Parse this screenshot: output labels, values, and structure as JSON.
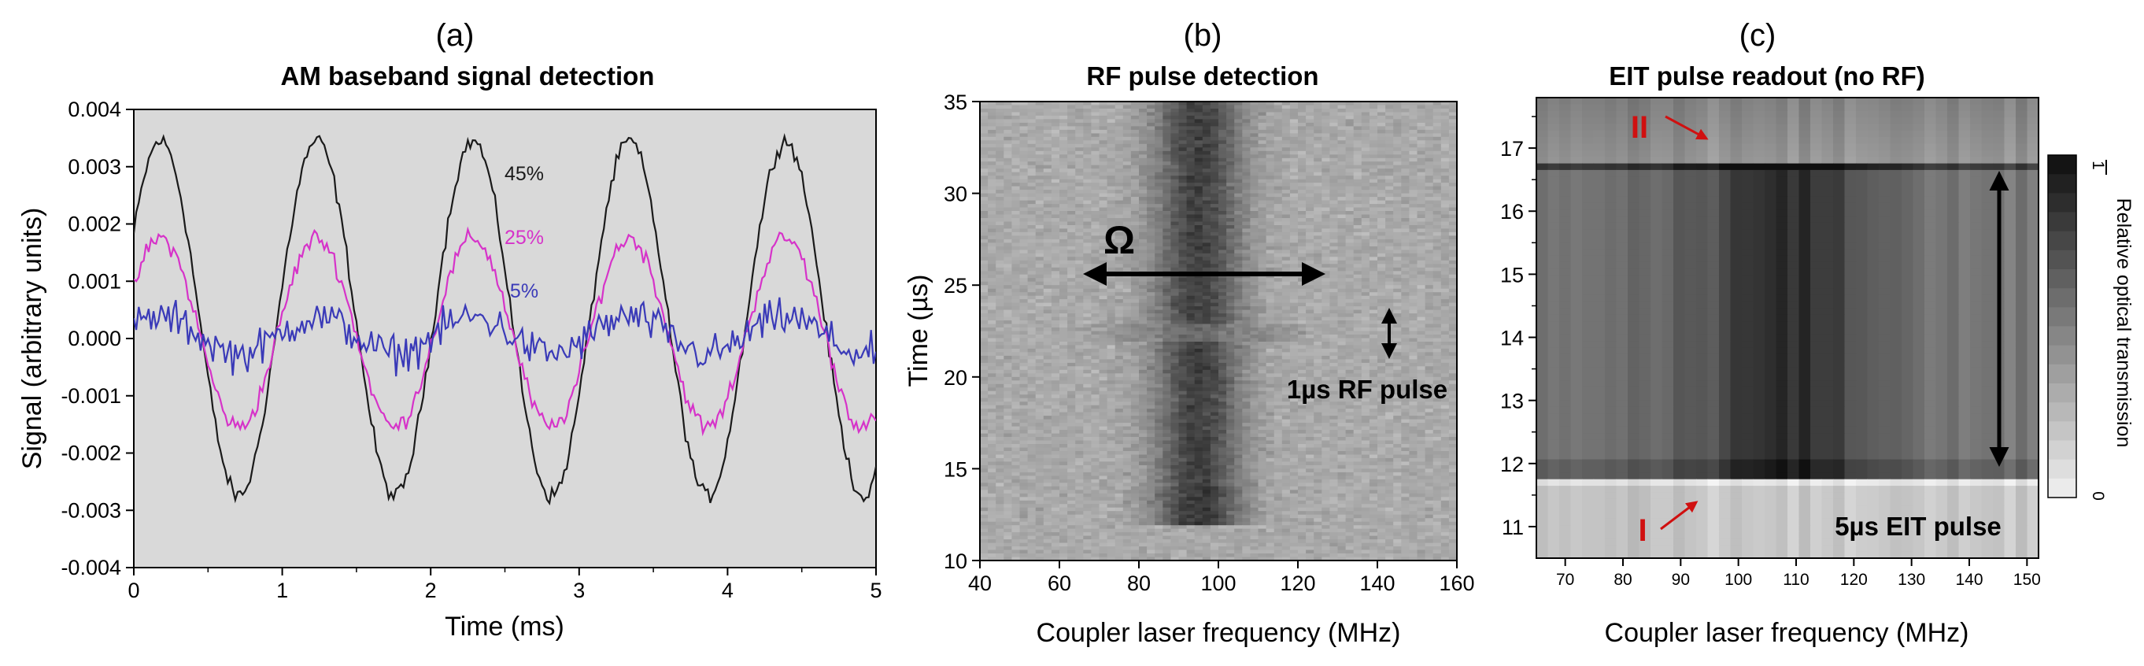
{
  "figure": {
    "panels": [
      {
        "label": "(a)",
        "title": "AM baseband signal detection"
      },
      {
        "label": "(b)",
        "title": "RF pulse detection"
      },
      {
        "label": "(c)",
        "title": "EIT pulse readout (no RF)"
      }
    ]
  },
  "chart_data": [
    {
      "type": "line",
      "panel": "(a)",
      "title": "AM baseband signal detection",
      "xlabel": "Time (ms)",
      "ylabel": "Signal (arbitrary units)",
      "xlim": [
        0,
        5
      ],
      "ylim": [
        -0.004,
        0.004
      ],
      "xticks": [
        "0",
        "1",
        "2",
        "3",
        "4",
        "5"
      ],
      "yticks": [
        "0.004",
        "0.003",
        "0.002",
        "0.001",
        "0.000",
        "-0.001",
        "-0.002",
        "-0.003",
        "-0.004"
      ],
      "background": "#d9d9d9",
      "series": [
        {
          "name": "45%",
          "color": "#1a1a1a",
          "amplitude": 0.0031,
          "offset": 0.00035,
          "frequency_khz": 0.95,
          "peak_time_ms": 0.18,
          "noise": 0.00012
        },
        {
          "name": "25%",
          "color": "#d633c9",
          "amplitude": 0.00165,
          "offset": 0.0001,
          "frequency_khz": 0.95,
          "peak_time_ms": 0.18,
          "noise": 0.00014
        },
        {
          "name": "5%",
          "color": "#3a3ab8",
          "amplitude": 0.00032,
          "offset": 5e-05,
          "frequency_khz": 0.95,
          "peak_time_ms": 0.18,
          "noise": 0.00028
        }
      ]
    },
    {
      "type": "heatmap",
      "panel": "(b)",
      "title": "RF pulse detection",
      "xlabel": "Coupler laser frequency (MHz)",
      "ylabel": "Time (µs)",
      "xlim": [
        40,
        160
      ],
      "ylim": [
        10,
        35
      ],
      "xticks": [
        "40",
        "60",
        "80",
        "100",
        "120",
        "140",
        "160"
      ],
      "yticks": [
        "35",
        "30",
        "25",
        "20",
        "15",
        "10"
      ],
      "eit_line_center_mhz": 95,
      "eit_line_width_mhz": 12,
      "eit_line_time_range_us": [
        12,
        35
      ],
      "rf_pulse_time_us": 22.4,
      "annotations": {
        "omega": "Ω",
        "pulse": "1µs RF pulse"
      }
    },
    {
      "type": "heatmap",
      "panel": "(c)",
      "title": "EIT pulse readout (no RF)",
      "xlabel": "Coupler laser frequency (MHz)",
      "xlim": [
        65,
        152
      ],
      "ylim": [
        10.5,
        17.8
      ],
      "xticks": [
        "70",
        "80",
        "90",
        "100",
        "110",
        "120",
        "130",
        "140",
        "150"
      ],
      "yticks": [
        "17",
        "16",
        "15",
        "14",
        "13",
        "12",
        "11"
      ],
      "eit_pulse_time_range_us": [
        11.8,
        16.8
      ],
      "eit_line_center_mhz": 108,
      "colorbar": {
        "label": "Relative optical transmission",
        "max": "1",
        "min": "0"
      },
      "annotations": {
        "marker_top": "II",
        "marker_bottom": "I",
        "pulse": "5µs EIT pulse"
      }
    }
  ]
}
